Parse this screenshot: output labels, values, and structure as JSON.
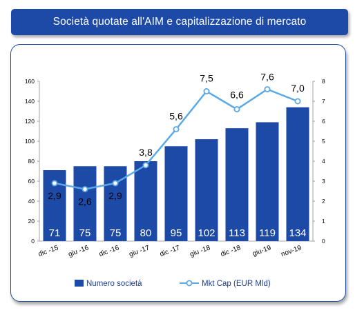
{
  "header": {
    "title": "Società quotate all'AIM e capitalizzazione di mercato"
  },
  "chart_data": {
    "type": "bar",
    "title": "Società quotate all'AIM e capitalizzazione di mercato",
    "categories": [
      "dic -15",
      "giu -16",
      "dic -16",
      "giu -17",
      "dic -17",
      "giu -18",
      "dic -18",
      "giu-19",
      "nov-19"
    ],
    "series": [
      {
        "name": "Numero società",
        "type": "bar",
        "axis": "left",
        "color": "#1d4aa6",
        "values": [
          71,
          75,
          75,
          80,
          95,
          102,
          113,
          119,
          134
        ],
        "labels": [
          "71",
          "75",
          "75",
          "80",
          "95",
          "102",
          "113",
          "119",
          "134"
        ]
      },
      {
        "name": "Mkt  Cap (EUR Mld)",
        "type": "line",
        "axis": "right",
        "color": "#5aa9e6",
        "values": [
          2.9,
          2.6,
          2.9,
          3.8,
          5.6,
          7.5,
          6.6,
          7.6,
          7.0
        ],
        "labels": [
          "2,9",
          "2,6",
          "2,9",
          "3,8",
          "5,6",
          "7,5",
          "6,6",
          "7,6",
          "7,0"
        ]
      }
    ],
    "y_left": {
      "min": 0,
      "max": 160,
      "ticks": [
        "0",
        "20",
        "40",
        "60",
        "80",
        "100",
        "120",
        "140",
        "160"
      ]
    },
    "y_right": {
      "min": 0,
      "max": 8,
      "ticks": [
        "0",
        "1",
        "2",
        "3",
        "4",
        "5",
        "6",
        "7",
        "8"
      ]
    },
    "grid": false,
    "legend_position": "bottom"
  }
}
